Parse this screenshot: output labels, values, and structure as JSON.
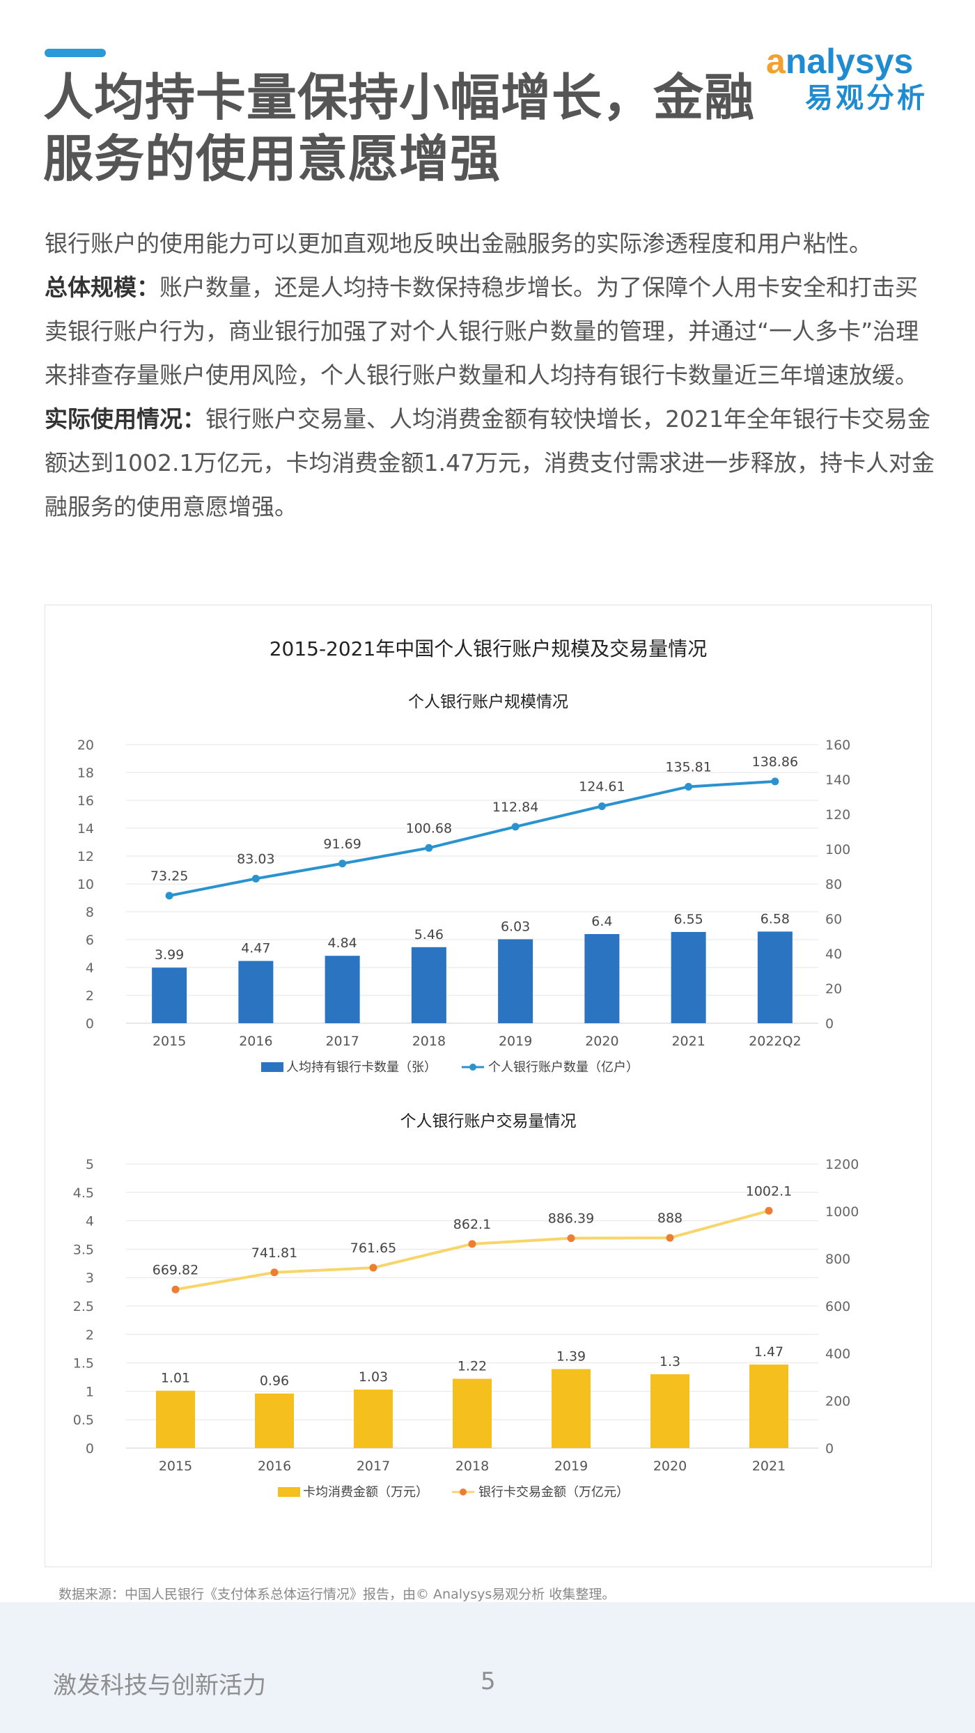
{
  "title": {
    "line1": "人均持卡量保持小幅增长，金融",
    "line2": "服务的使用意愿增强"
  },
  "logo": {
    "brand_a": "a",
    "brand_rest": "nalysys",
    "name_cn": "易观分析"
  },
  "intro": {
    "p1": "银行账户的使用能力可以更加直观地反映出金融服务的实际渗透程度和用户粘性。",
    "p2_label": "总体规模：",
    "p2_text": "账户数量，还是人均持卡数保持稳步增长。为了保障个人用卡安全和打击买卖银行账户行为，商业银行加强了对个人银行账户数量的管理，并通过“一人多卡”治理来排查存量账户使用风险，个人银行账户数量和人均持有银行卡数量近三年增速放缓。",
    "p3_label": "实际使用情况：",
    "p3_text": "银行账户交易量、人均消费金额有较快增长，2021年全年银行卡交易金额达到1002.1万亿元，卡均消费金额1.47万元，消费支付需求进一步释放，持卡人对金融服务的使用意愿增强。"
  },
  "figure_title": "2015-2021年中国个人银行账户规模及交易量情况",
  "chart_data": [
    {
      "type": "bar+line",
      "title": "个人银行账户规模情况",
      "categories": [
        "2015",
        "2016",
        "2017",
        "2018",
        "2019",
        "2020",
        "2021",
        "2022Q2"
      ],
      "ylim_left": [
        0,
        20
      ],
      "yticks_left": [
        0,
        2,
        4,
        6,
        8,
        10,
        12,
        14,
        16,
        18,
        20
      ],
      "ylim_right": [
        0,
        160
      ],
      "yticks_right": [
        0,
        20,
        40,
        60,
        80,
        100,
        120,
        140,
        160
      ],
      "grid": true,
      "legend": "bottom",
      "series": [
        {
          "name": "人均持有银行卡数量（张）",
          "kind": "bar",
          "axis": "left",
          "color": "#2a74c2",
          "values": [
            3.99,
            4.47,
            4.84,
            5.46,
            6.03,
            6.4,
            6.55,
            6.58
          ],
          "labels": [
            "3.99",
            "4.47",
            "4.84",
            "5.46",
            "6.03",
            "6.4",
            "6.55",
            "6.58"
          ]
        },
        {
          "name": "个人银行账户数量（亿户）",
          "kind": "line",
          "axis": "right",
          "color": "#2a93cf",
          "marker_color": "#2a93cf",
          "values": [
            73.25,
            83.03,
            91.69,
            100.68,
            112.84,
            124.61,
            135.81,
            138.86
          ],
          "labels": [
            "73.25",
            "83.03",
            "91.69",
            "100.68",
            "112.84",
            "124.61",
            "135.81",
            "138.86"
          ]
        }
      ]
    },
    {
      "type": "bar+line",
      "title": "个人银行账户交易量情况",
      "categories": [
        "2015",
        "2016",
        "2017",
        "2018",
        "2019",
        "2020",
        "2021"
      ],
      "ylim_left": [
        0,
        5
      ],
      "yticks_left": [
        0,
        0.5,
        1,
        1.5,
        2,
        2.5,
        3,
        3.5,
        4,
        4.5,
        5
      ],
      "ylim_right": [
        0,
        1200
      ],
      "yticks_right": [
        0,
        200,
        400,
        600,
        800,
        1000,
        1200
      ],
      "grid": true,
      "legend": "bottom",
      "series": [
        {
          "name": "卡均消费金额（万元）",
          "kind": "bar",
          "axis": "left",
          "color": "#f5c01e",
          "values": [
            1.01,
            0.96,
            1.03,
            1.22,
            1.39,
            1.3,
            1.47
          ],
          "labels": [
            "1.01",
            "0.96",
            "1.03",
            "1.22",
            "1.39",
            "1.3",
            "1.47"
          ]
        },
        {
          "name": "银行卡交易金额（万亿元）",
          "kind": "line",
          "axis": "right",
          "color": "#f8d56b",
          "marker_color": "#ec7d31",
          "values": [
            669.82,
            741.81,
            761.65,
            862.1,
            886.39,
            888,
            1002.1
          ],
          "labels": [
            "669.82",
            "741.81",
            "761.65",
            "862.1",
            "886.39",
            "888",
            "1002.1"
          ]
        }
      ]
    }
  ],
  "source": "数据来源：中国人民银行《支付体系总体运行情况》报告，由© Analysys易观分析 收集整理。",
  "footer": {
    "slogan": "激发科技与创新活力",
    "page_number": "5"
  }
}
